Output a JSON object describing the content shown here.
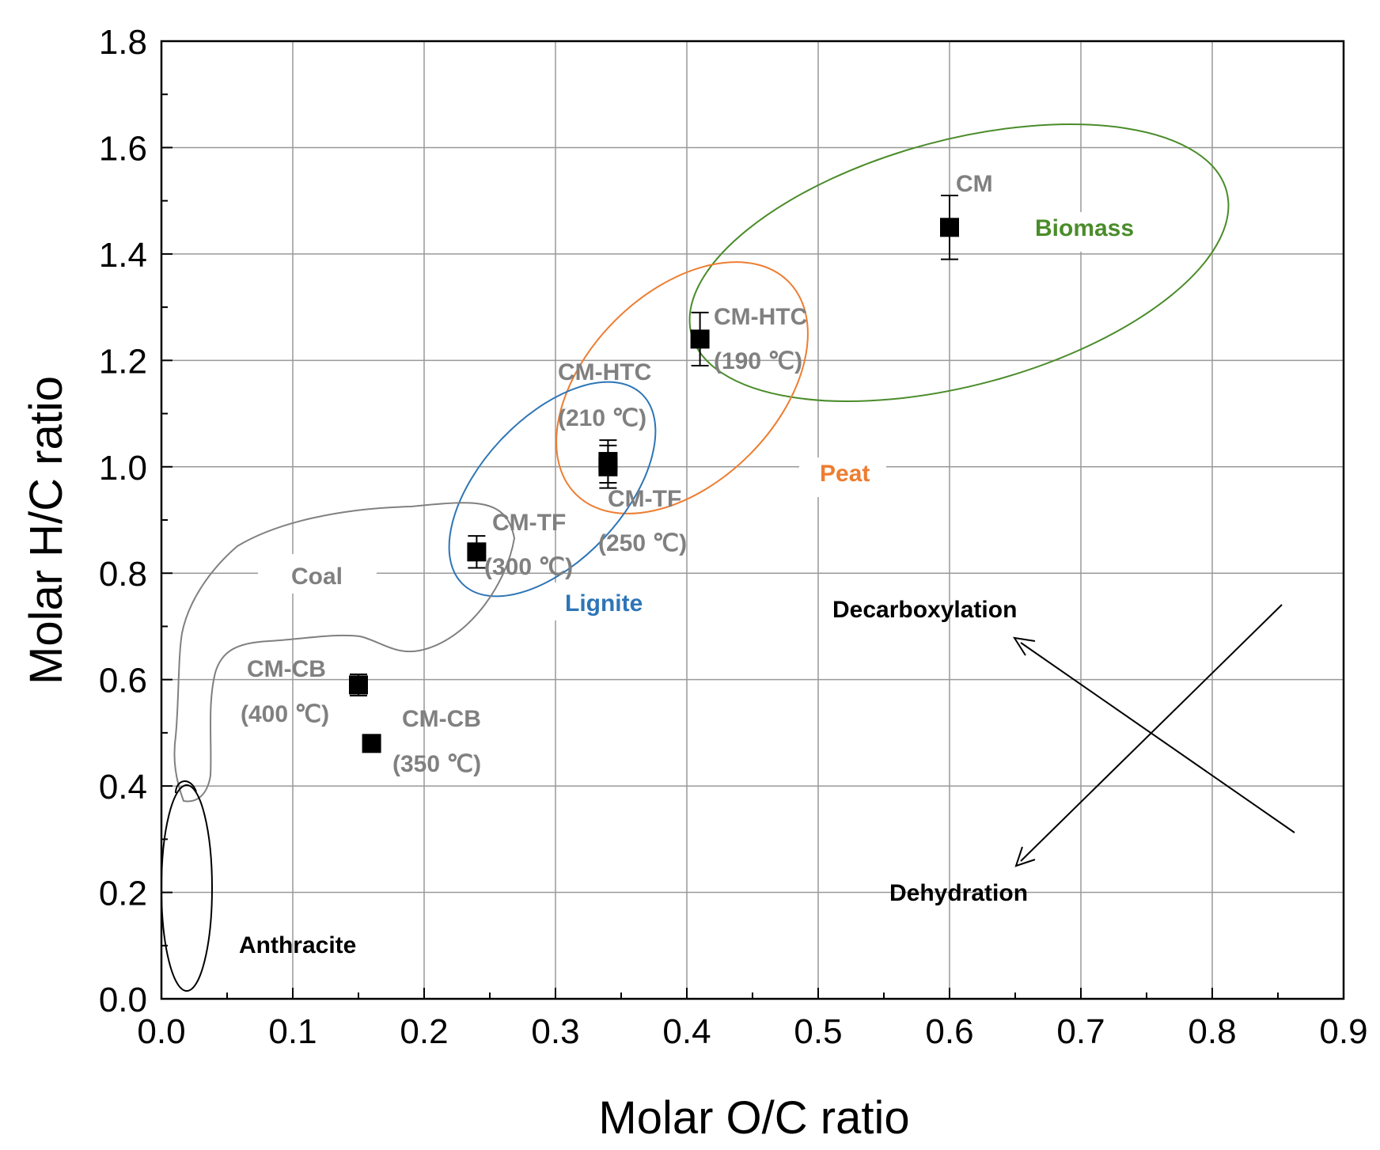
{
  "chart_data": {
    "type": "scatter",
    "xlabel": "Molar O/C ratio",
    "ylabel": "Molar H/C ratio",
    "xlim": [
      0.0,
      0.9
    ],
    "ylim": [
      0.0,
      1.8
    ],
    "xticks": [
      "0.0",
      "0.1",
      "0.2",
      "0.3",
      "0.4",
      "0.5",
      "0.6",
      "0.7",
      "0.8",
      "0.9"
    ],
    "yticks": [
      "0.0",
      "0.2",
      "0.4",
      "0.6",
      "0.8",
      "1.0",
      "1.2",
      "1.4",
      "1.6",
      "1.8"
    ],
    "grid": true,
    "series": [
      {
        "marker": "filled-square",
        "points": [
          {
            "x": 0.6,
            "y": 1.45,
            "err": 0.06,
            "label": "CM"
          },
          {
            "x": 0.41,
            "y": 1.24,
            "err": 0.05,
            "label": "CM-HTC\n(190 ℃)"
          },
          {
            "x": 0.34,
            "y": 1.0,
            "err": 0.04,
            "label": "CM-HTC\n(210 ℃)"
          },
          {
            "x": 0.34,
            "y": 1.01,
            "err": 0.04,
            "label": "CM-TF\n(250 ℃)"
          },
          {
            "x": 0.24,
            "y": 0.84,
            "err": 0.03,
            "label": "CM-TF\n(300 ℃)"
          },
          {
            "x": 0.15,
            "y": 0.59,
            "err": 0.02,
            "label": "CM-CB\n(400 ℃)"
          },
          {
            "x": 0.16,
            "y": 0.48,
            "err": 0.0,
            "label": "CM-CB\n(350 ℃)"
          }
        ]
      }
    ],
    "regions": [
      {
        "name": "Biomass",
        "color": "#4a8c2a"
      },
      {
        "name": "Peat",
        "color": "#ed7d31"
      },
      {
        "name": "Lignite",
        "color": "#2e75b6"
      },
      {
        "name": "Coal",
        "color": "#808080"
      },
      {
        "name": "Anthracite",
        "color": "#000000"
      }
    ],
    "annotations": [
      "Decarboxylation",
      "Dehydration"
    ],
    "colors": {
      "label_gray": "#808080",
      "marker": "#000000",
      "grid": "#999999"
    }
  }
}
